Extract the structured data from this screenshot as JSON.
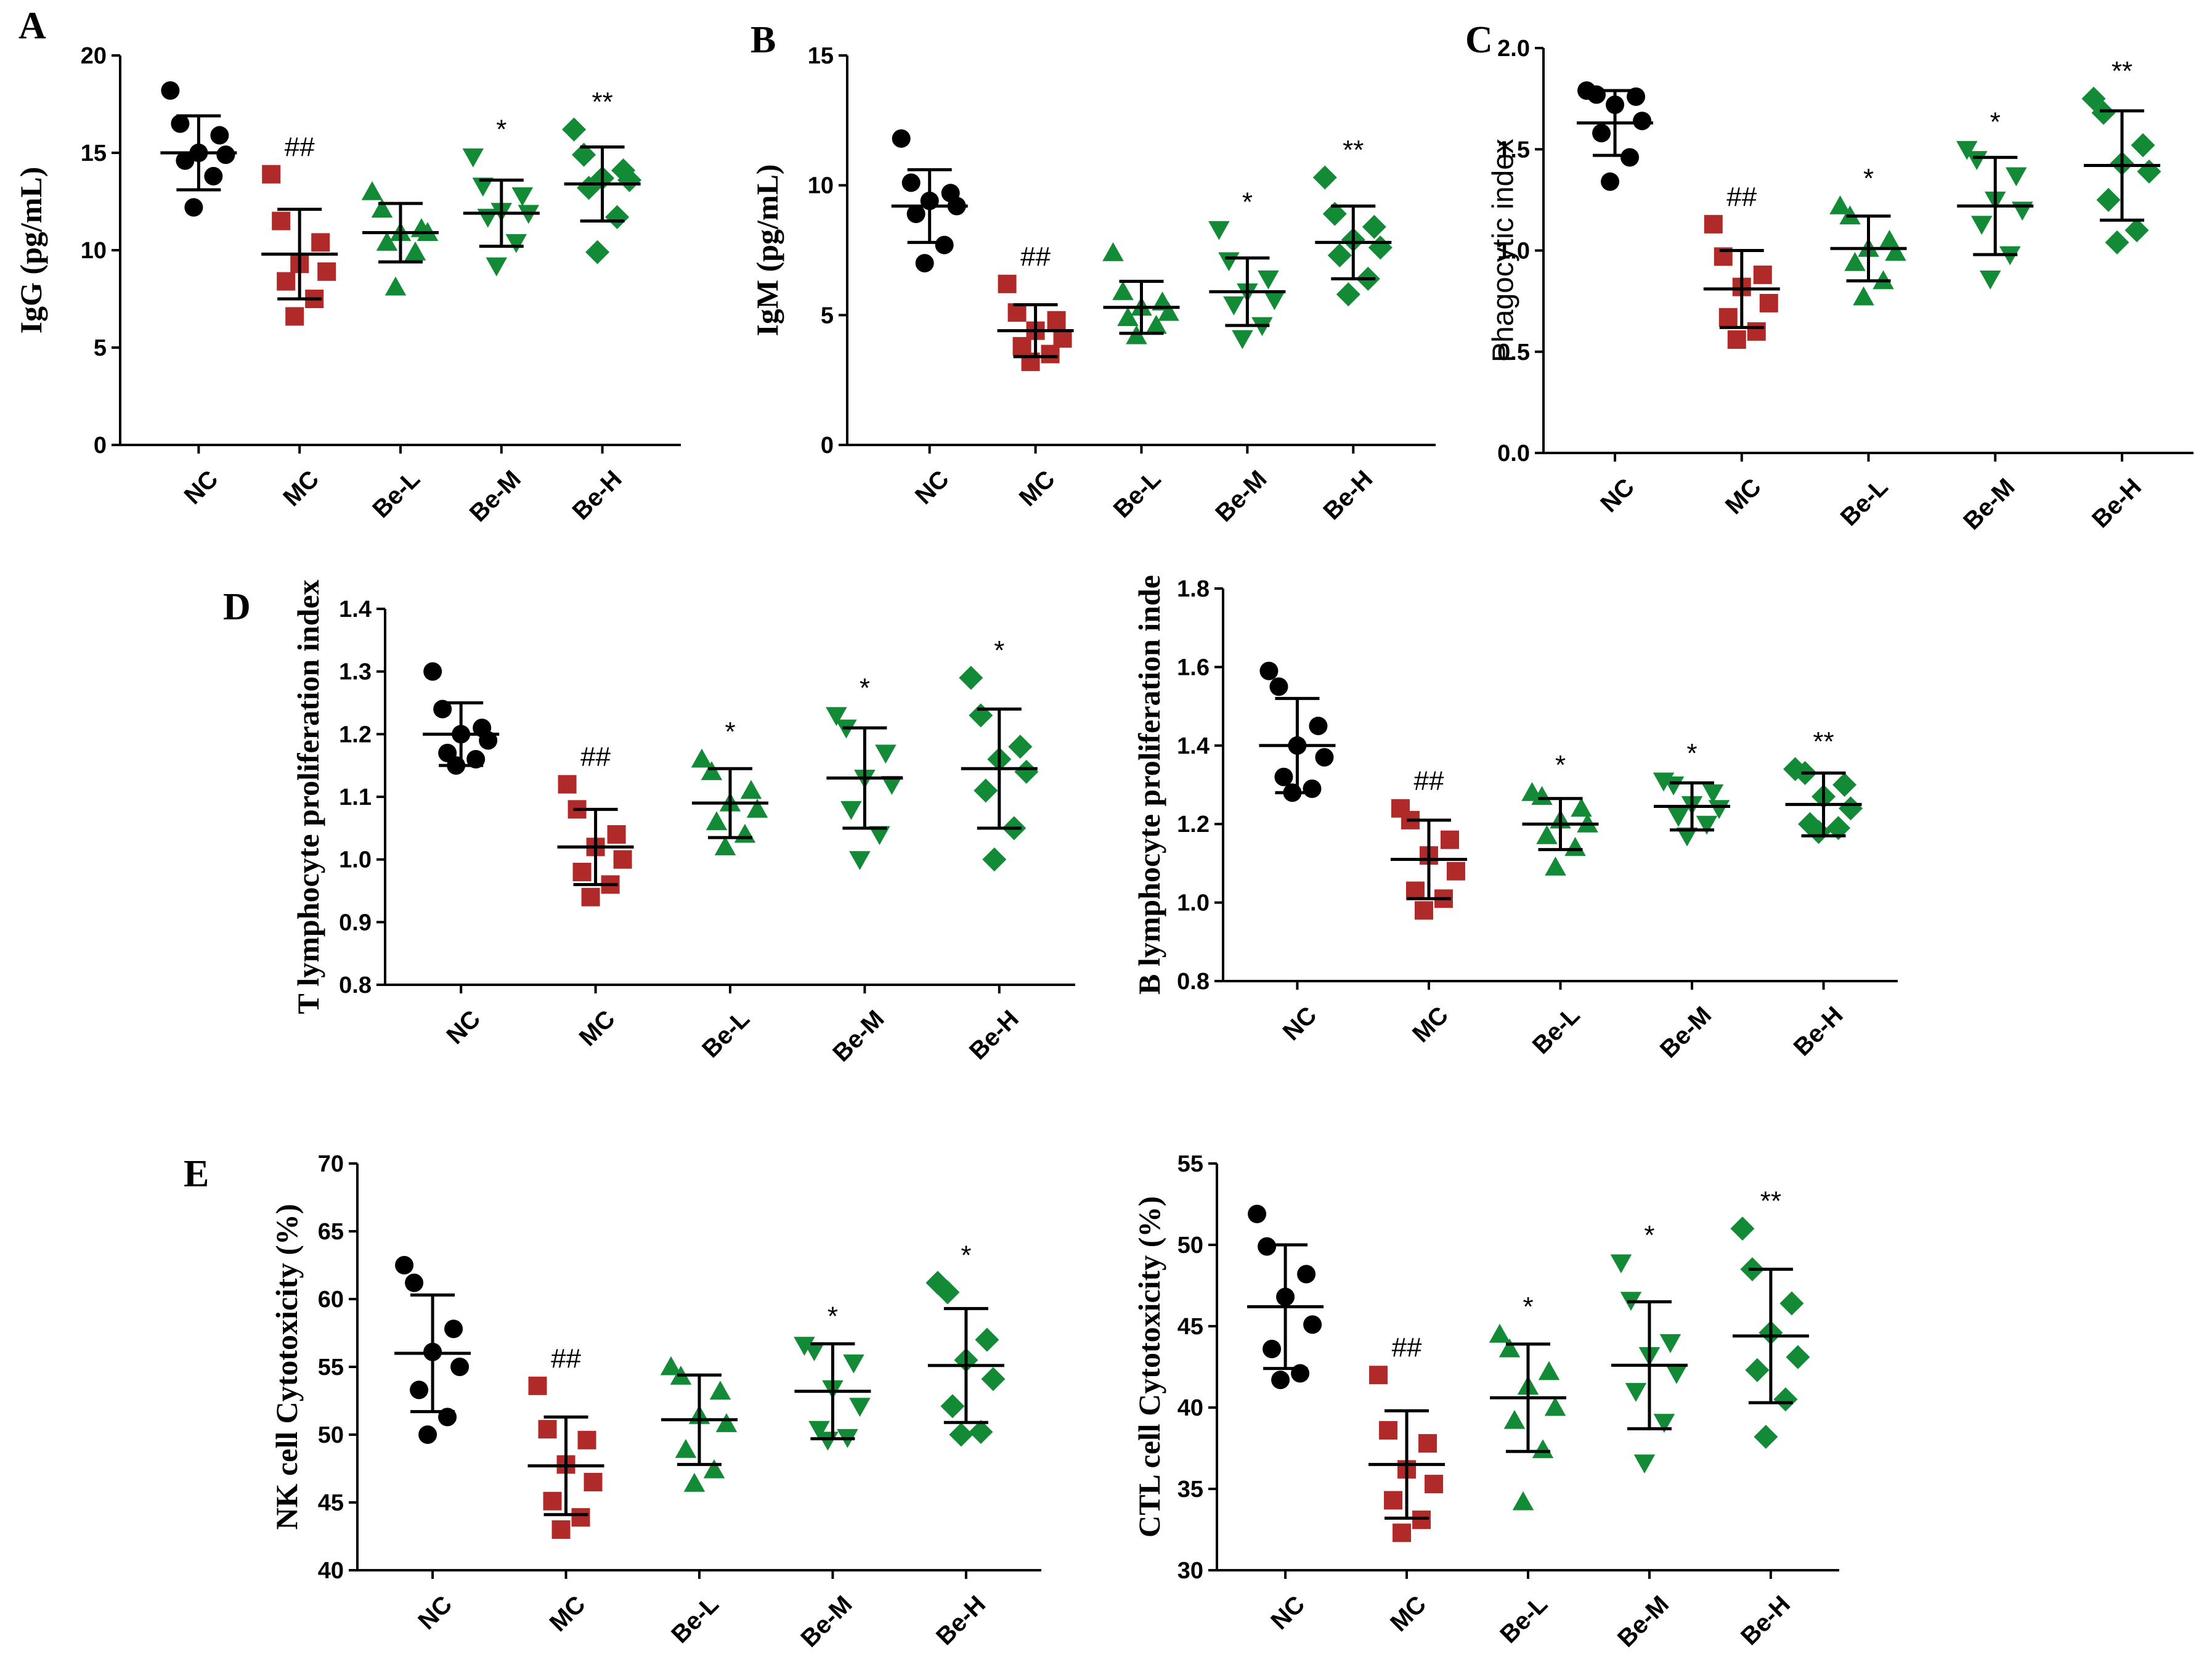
{
  "figure": {
    "labels": {
      "A": "A",
      "B": "B",
      "C": "C",
      "D": "D",
      "E": "E"
    },
    "colors": {
      "NC": "#000000",
      "MC": "#b02a2a",
      "Be": "#138a36",
      "axis": "#000000"
    }
  },
  "chart_data": [
    {
      "id": "A",
      "type": "scatter",
      "ylabel": "IgG (pg/mL)",
      "categories": [
        "NC",
        "MC",
        "Be-L",
        "Be-M",
        "Be-H"
      ],
      "ylim": [
        0,
        20
      ],
      "yticks": [
        "0",
        "5",
        "10",
        "15",
        "20"
      ],
      "groups": [
        {
          "name": "NC",
          "marker": "circle",
          "color": "#000000",
          "mean": 15.0,
          "sd": 1.9,
          "points": [
            18.2,
            16.5,
            15.9,
            15.0,
            14.9,
            14.6,
            13.8,
            12.2
          ],
          "sig": ""
        },
        {
          "name": "MC",
          "marker": "square",
          "color": "#b02a2a",
          "mean": 9.8,
          "sd": 2.3,
          "points": [
            13.9,
            11.5,
            10.4,
            9.3,
            8.9,
            8.4,
            7.5,
            6.6
          ],
          "sig": "##"
        },
        {
          "name": "Be-L",
          "marker": "triangle-up",
          "color": "#138a36",
          "mean": 10.9,
          "sd": 1.5,
          "points": [
            13.0,
            12.1,
            11.1,
            10.9,
            10.9,
            10.4,
            9.9,
            8.1
          ],
          "sig": ""
        },
        {
          "name": "Be-M",
          "marker": "triangle-down",
          "color": "#138a36",
          "mean": 11.9,
          "sd": 1.7,
          "points": [
            14.8,
            13.3,
            12.8,
            12.0,
            11.9,
            11.7,
            10.4,
            9.2
          ],
          "sig": "*"
        },
        {
          "name": "Be-H",
          "marker": "diamond",
          "color": "#138a36",
          "mean": 13.4,
          "sd": 1.9,
          "points": [
            16.2,
            14.9,
            14.1,
            13.7,
            13.6,
            13.2,
            11.7,
            9.9
          ],
          "sig": "**"
        }
      ]
    },
    {
      "id": "B",
      "type": "scatter",
      "ylabel": "IgM (pg/mL)",
      "categories": [
        "NC",
        "MC",
        "Be-L",
        "Be-M",
        "Be-H"
      ],
      "ylim": [
        0,
        15
      ],
      "yticks": [
        "0",
        "5",
        "10",
        "15"
      ],
      "groups": [
        {
          "name": "NC",
          "marker": "circle",
          "color": "#000000",
          "mean": 9.2,
          "sd": 1.4,
          "points": [
            11.8,
            10.1,
            9.7,
            9.4,
            9.2,
            8.9,
            7.7,
            7.0
          ],
          "sig": ""
        },
        {
          "name": "MC",
          "marker": "square",
          "color": "#b02a2a",
          "mean": 4.4,
          "sd": 1.0,
          "points": [
            6.2,
            5.1,
            4.8,
            4.4,
            4.1,
            3.8,
            3.5,
            3.2
          ],
          "sig": "##"
        },
        {
          "name": "Be-L",
          "marker": "triangle-up",
          "color": "#138a36",
          "mean": 5.3,
          "sd": 1.0,
          "points": [
            7.4,
            5.9,
            5.5,
            5.3,
            5.1,
            4.9,
            4.6,
            4.2
          ],
          "sig": ""
        },
        {
          "name": "Be-M",
          "marker": "triangle-down",
          "color": "#138a36",
          "mean": 5.9,
          "sd": 1.3,
          "points": [
            8.3,
            7.1,
            6.4,
            5.9,
            5.6,
            5.4,
            4.6,
            4.1
          ],
          "sig": "*"
        },
        {
          "name": "Be-H",
          "marker": "diamond",
          "color": "#138a36",
          "mean": 7.8,
          "sd": 1.4,
          "points": [
            10.3,
            8.9,
            8.4,
            7.9,
            7.6,
            7.3,
            6.4,
            5.8
          ],
          "sig": "**"
        }
      ]
    },
    {
      "id": "C",
      "type": "scatter",
      "ylabel": "Phagocytic index",
      "categories": [
        "NC",
        "MC",
        "Be-L",
        "Be-M",
        "Be-H"
      ],
      "ylim": [
        0,
        2
      ],
      "yticks": [
        "0.0",
        "0.5",
        "1.0",
        "1.5",
        "2.0"
      ],
      "groups": [
        {
          "name": "NC",
          "marker": "circle",
          "color": "#000000",
          "mean": 1.63,
          "sd": 0.16,
          "points": [
            1.79,
            1.77,
            1.76,
            1.72,
            1.64,
            1.58,
            1.46,
            1.34
          ],
          "sig": ""
        },
        {
          "name": "MC",
          "marker": "square",
          "color": "#b02a2a",
          "mean": 0.81,
          "sd": 0.19,
          "points": [
            1.13,
            0.97,
            0.88,
            0.82,
            0.74,
            0.67,
            0.6,
            0.56
          ],
          "sig": "##"
        },
        {
          "name": "Be-L",
          "marker": "triangle-up",
          "color": "#138a36",
          "mean": 1.01,
          "sd": 0.16,
          "points": [
            1.22,
            1.17,
            1.05,
            1.01,
            0.99,
            0.94,
            0.85,
            0.77
          ],
          "sig": "*"
        },
        {
          "name": "Be-M",
          "marker": "triangle-down",
          "color": "#138a36",
          "mean": 1.22,
          "sd": 0.24,
          "points": [
            1.5,
            1.45,
            1.37,
            1.25,
            1.2,
            1.13,
            0.98,
            0.86
          ],
          "sig": "*"
        },
        {
          "name": "Be-H",
          "marker": "diamond",
          "color": "#138a36",
          "mean": 1.42,
          "sd": 0.27,
          "points": [
            1.75,
            1.68,
            1.52,
            1.43,
            1.39,
            1.25,
            1.1,
            1.04
          ],
          "sig": "**"
        }
      ]
    },
    {
      "id": "D1",
      "type": "scatter",
      "ylabel": "T lymphocyte proliferation index",
      "categories": [
        "NC",
        "MC",
        "Be-L",
        "Be-M",
        "Be-H"
      ],
      "ylim": [
        0.8,
        1.4
      ],
      "yticks": [
        "0.8",
        "0.9",
        "1.0",
        "1.1",
        "1.2",
        "1.3",
        "1.4"
      ],
      "groups": [
        {
          "name": "NC",
          "marker": "circle",
          "color": "#000000",
          "mean": 1.2,
          "sd": 0.05,
          "points": [
            1.3,
            1.24,
            1.21,
            1.2,
            1.19,
            1.17,
            1.16,
            1.15
          ],
          "sig": ""
        },
        {
          "name": "MC",
          "marker": "square",
          "color": "#b02a2a",
          "mean": 1.02,
          "sd": 0.06,
          "points": [
            1.12,
            1.08,
            1.04,
            1.02,
            1.0,
            0.98,
            0.96,
            0.94
          ],
          "sig": "##"
        },
        {
          "name": "Be-L",
          "marker": "triangle-up",
          "color": "#138a36",
          "mean": 1.09,
          "sd": 0.055,
          "points": [
            1.16,
            1.14,
            1.11,
            1.09,
            1.08,
            1.06,
            1.04,
            1.02
          ],
          "sig": "*"
        },
        {
          "name": "Be-M",
          "marker": "triangle-down",
          "color": "#138a36",
          "mean": 1.13,
          "sd": 0.08,
          "points": [
            1.23,
            1.21,
            1.17,
            1.13,
            1.12,
            1.08,
            1.04,
            1.0
          ],
          "sig": "*"
        },
        {
          "name": "Be-H",
          "marker": "diamond",
          "color": "#138a36",
          "mean": 1.145,
          "sd": 0.095,
          "points": [
            1.29,
            1.23,
            1.18,
            1.16,
            1.14,
            1.11,
            1.05,
            1.0
          ],
          "sig": "*"
        }
      ]
    },
    {
      "id": "D2",
      "type": "scatter",
      "ylabel": "B lymphocyte proliferation inde",
      "categories": [
        "NC",
        "MC",
        "Be-L",
        "Be-M",
        "Be-H"
      ],
      "ylim": [
        0.8,
        1.8
      ],
      "yticks": [
        "0.8",
        "1.0",
        "1.2",
        "1.4",
        "1.6",
        "1.8"
      ],
      "groups": [
        {
          "name": "NC",
          "marker": "circle",
          "color": "#000000",
          "mean": 1.4,
          "sd": 0.12,
          "points": [
            1.59,
            1.55,
            1.45,
            1.4,
            1.37,
            1.32,
            1.29,
            1.28
          ],
          "sig": ""
        },
        {
          "name": "MC",
          "marker": "square",
          "color": "#b02a2a",
          "mean": 1.11,
          "sd": 0.1,
          "points": [
            1.24,
            1.21,
            1.16,
            1.12,
            1.08,
            1.03,
            1.01,
            0.98
          ],
          "sig": "##"
        },
        {
          "name": "Be-L",
          "marker": "triangle-up",
          "color": "#138a36",
          "mean": 1.2,
          "sd": 0.065,
          "points": [
            1.28,
            1.27,
            1.24,
            1.21,
            1.2,
            1.17,
            1.14,
            1.09
          ],
          "sig": "*"
        },
        {
          "name": "Be-M",
          "marker": "triangle-down",
          "color": "#138a36",
          "mean": 1.245,
          "sd": 0.06,
          "points": [
            1.31,
            1.3,
            1.28,
            1.25,
            1.24,
            1.22,
            1.2,
            1.17
          ],
          "sig": "*"
        },
        {
          "name": "Be-H",
          "marker": "diamond",
          "color": "#138a36",
          "mean": 1.25,
          "sd": 0.08,
          "points": [
            1.34,
            1.33,
            1.3,
            1.27,
            1.24,
            1.2,
            1.19,
            1.18
          ],
          "sig": "**"
        }
      ]
    },
    {
      "id": "E1",
      "type": "scatter",
      "ylabel": "NK cell Cytotoxicity (%)",
      "categories": [
        "NC",
        "MC",
        "Be-L",
        "Be-M",
        "Be-H"
      ],
      "ylim": [
        40,
        70
      ],
      "yticks": [
        "40",
        "45",
        "50",
        "55",
        "60",
        "65",
        "70"
      ],
      "groups": [
        {
          "name": "NC",
          "marker": "circle",
          "color": "#000000",
          "mean": 56.0,
          "sd": 4.3,
          "points": [
            62.5,
            61.2,
            57.8,
            56.1,
            55.0,
            53.3,
            51.3,
            50.0
          ],
          "sig": ""
        },
        {
          "name": "MC",
          "marker": "square",
          "color": "#b02a2a",
          "mean": 47.7,
          "sd": 3.6,
          "points": [
            53.6,
            50.4,
            49.6,
            47.8,
            46.5,
            45.1,
            43.9,
            43.0
          ],
          "sig": "##"
        },
        {
          "name": "Be-L",
          "marker": "triangle-up",
          "color": "#138a36",
          "mean": 51.1,
          "sd": 3.3,
          "points": [
            55.0,
            54.3,
            53.2,
            51.4,
            50.8,
            48.9,
            47.4,
            46.4
          ],
          "sig": ""
        },
        {
          "name": "Be-M",
          "marker": "triangle-down",
          "color": "#138a36",
          "mean": 53.2,
          "sd": 3.5,
          "points": [
            56.6,
            56.2,
            55.3,
            53.4,
            52.1,
            50.4,
            49.8,
            49.6
          ],
          "sig": "*"
        },
        {
          "name": "Be-H",
          "marker": "diamond",
          "color": "#138a36",
          "mean": 55.1,
          "sd": 4.2,
          "points": [
            61.2,
            60.5,
            57.0,
            55.5,
            54.1,
            52.1,
            50.2,
            50.0
          ],
          "sig": "*"
        }
      ]
    },
    {
      "id": "E2",
      "type": "scatter",
      "ylabel": "CTL cell Cytotoxicity (%)",
      "categories": [
        "NC",
        "MC",
        "Be-L",
        "Be-M",
        "Be-H"
      ],
      "ylim": [
        30,
        55
      ],
      "yticks": [
        "30",
        "35",
        "40",
        "45",
        "50",
        "55"
      ],
      "groups": [
        {
          "name": "NC",
          "marker": "circle",
          "color": "#000000",
          "mean": 46.2,
          "sd": 3.8,
          "points": [
            51.9,
            49.9,
            48.2,
            46.8,
            45.1,
            43.6,
            42.1,
            41.7
          ],
          "sig": ""
        },
        {
          "name": "MC",
          "marker": "square",
          "color": "#b02a2a",
          "mean": 36.5,
          "sd": 3.3,
          "points": [
            42.0,
            38.6,
            37.8,
            36.2,
            35.3,
            34.3,
            33.1,
            32.3
          ],
          "sig": "##"
        },
        {
          "name": "Be-L",
          "marker": "triangle-up",
          "color": "#138a36",
          "mean": 40.6,
          "sd": 3.3,
          "points": [
            44.5,
            43.6,
            42.2,
            41.3,
            40.0,
            39.2,
            37.4,
            34.2
          ],
          "sig": "*"
        },
        {
          "name": "Be-M",
          "marker": "triangle-down",
          "color": "#138a36",
          "mean": 42.6,
          "sd": 3.9,
          "points": [
            48.9,
            46.6,
            44.0,
            43.2,
            42.1,
            41.0,
            39.1,
            36.6
          ],
          "sig": "*"
        },
        {
          "name": "Be-H",
          "marker": "diamond",
          "color": "#138a36",
          "mean": 44.4,
          "sd": 4.1,
          "points": [
            51.0,
            48.5,
            46.4,
            44.6,
            43.1,
            42.3,
            40.5,
            38.2
          ],
          "sig": "**"
        }
      ]
    }
  ]
}
